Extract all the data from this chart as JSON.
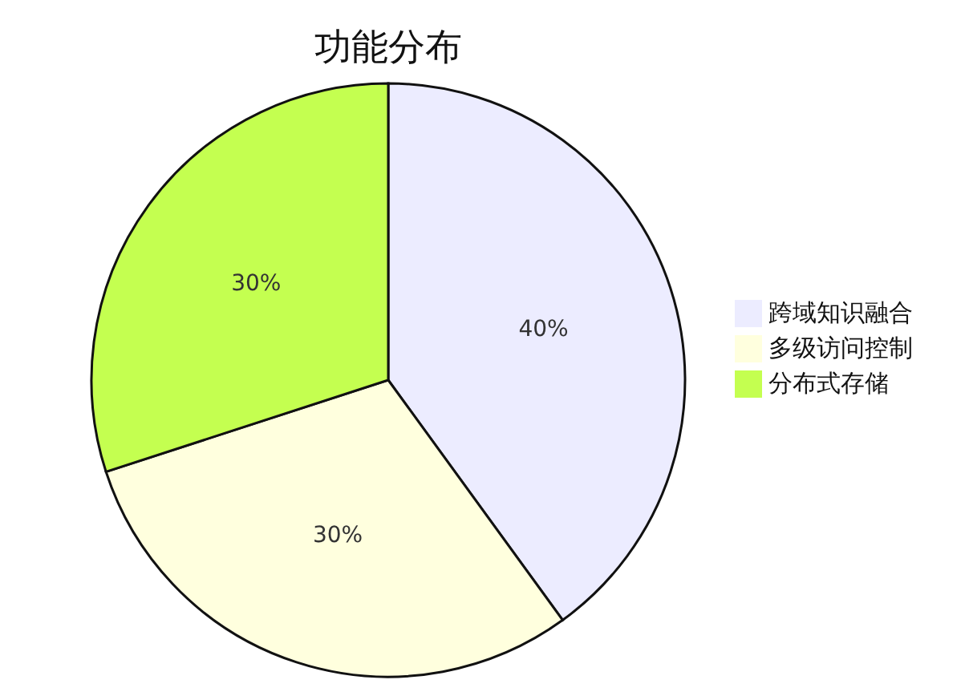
{
  "chart_data": {
    "type": "pie",
    "title": "功能分布",
    "categories": [
      "跨域知识融合",
      "多级访问控制",
      "分布式存储"
    ],
    "values": [
      40,
      30,
      30
    ],
    "colors": [
      "#ececff",
      "#ffffde",
      "#c4ff50"
    ],
    "value_labels": [
      "40%",
      "30%",
      "30%"
    ],
    "legend": "right"
  }
}
